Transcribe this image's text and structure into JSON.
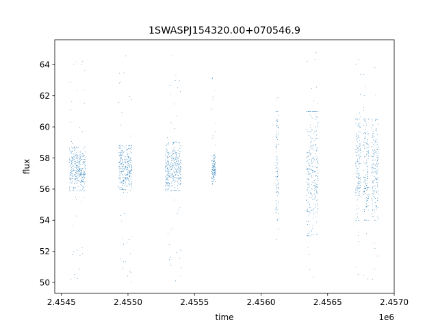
{
  "chart_data": {
    "type": "scatter",
    "title": "1SWASPJ154320.00+070546.9",
    "xlabel": "time",
    "ylabel": "flux",
    "x_offset_label": "1e6",
    "xlim": [
      2.45445,
      2.457
    ],
    "ylim": [
      49.3,
      65.6
    ],
    "x_ticks": [
      2.4545,
      2.455,
      2.4555,
      2.456,
      2.4565,
      2.457
    ],
    "x_tick_labels": [
      "2.4545",
      "2.4550",
      "2.4555",
      "2.4560",
      "2.4565",
      "2.4570"
    ],
    "y_ticks": [
      50,
      52,
      54,
      56,
      58,
      60,
      62,
      64
    ],
    "y_tick_labels": [
      "50",
      "52",
      "54",
      "56",
      "58",
      "60",
      "62",
      "64"
    ],
    "grid": false,
    "legend": "none",
    "point_color": "#1f77b4",
    "series": [
      {
        "observing_seasons": [
          {
            "x_start": 2.45456,
            "x_end": 2.45468,
            "flux_center": 57.3,
            "flux_core_range": [
              55.9,
              58.7
            ],
            "flux_full_range": [
              50.2,
              64.7
            ]
          },
          {
            "x_start": 2.45493,
            "x_end": 2.45503,
            "flux_center": 57.3,
            "flux_core_range": [
              55.8,
              58.8
            ],
            "flux_full_range": [
              50.0,
              64.9
            ]
          },
          {
            "x_start": 2.45528,
            "x_end": 2.4554,
            "flux_center": 57.4,
            "flux_core_range": [
              55.9,
              59.0
            ],
            "flux_full_range": [
              50.0,
              64.8
            ]
          },
          {
            "x_start": 2.45563,
            "x_end": 2.45566,
            "flux_center": 57.3,
            "flux_core_range": [
              56.5,
              58.2
            ],
            "flux_full_range": [
              56.0,
              64.3
            ]
          },
          {
            "x_start": 2.45611,
            "x_end": 2.45613,
            "flux_center": 57.5,
            "flux_core_range": [
              54.0,
              61.0
            ],
            "flux_full_range": [
              50.3,
              64.8
            ]
          },
          {
            "x_start": 2.45634,
            "x_end": 2.45643,
            "flux_center": 57.5,
            "flux_core_range": [
              53.0,
              61.0
            ],
            "flux_full_range": [
              50.0,
              64.9
            ]
          },
          {
            "x_start": 2.45671,
            "x_end": 2.45675,
            "flux_center": 57.3,
            "flux_core_range": [
              54.0,
              60.5
            ],
            "flux_full_range": [
              50.0,
              64.8
            ]
          },
          {
            "x_start": 2.45677,
            "x_end": 2.45681,
            "flux_center": 57.3,
            "flux_core_range": [
              54.0,
              60.5
            ],
            "flux_full_range": [
              50.0,
              64.8
            ]
          },
          {
            "x_start": 2.45683,
            "x_end": 2.45688,
            "flux_center": 57.3,
            "flux_core_range": [
              54.0,
              60.5
            ],
            "flux_full_range": [
              50.0,
              64.8
            ]
          }
        ]
      }
    ]
  }
}
